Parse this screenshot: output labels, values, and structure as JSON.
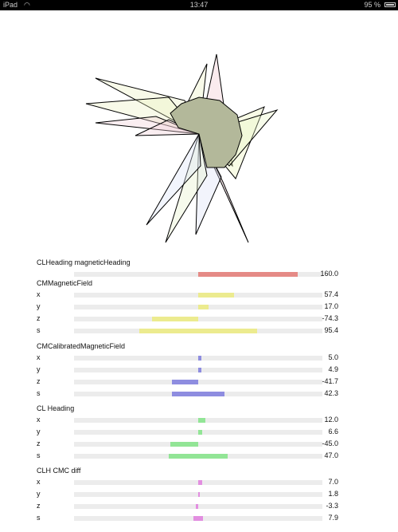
{
  "status_bar": {
    "device": "iPad",
    "time": "13:47",
    "battery": "95 %"
  },
  "colors": {
    "heading": "#e58a86",
    "magnetic": "#eceb8f",
    "calibrated": "#8e8de0",
    "cl_heading": "#92e596",
    "diff": "#e28ee0"
  },
  "scale_max": 200,
  "sections": [
    {
      "title": "CLHeading magneticHeading",
      "color_key": "heading",
      "rows": [
        {
          "label": "",
          "value": 160.0,
          "display": "160.0"
        }
      ]
    },
    {
      "title": "CMMagneticField",
      "color_key": "magnetic",
      "rows": [
        {
          "label": "x",
          "value": 57.4,
          "display": "57.4"
        },
        {
          "label": "y",
          "value": 17.0,
          "display": "17.0"
        },
        {
          "label": "z",
          "value": -74.3,
          "display": "-74.3"
        },
        {
          "label": "s",
          "value": 95.4,
          "display": "95.4",
          "symmetric": true
        }
      ]
    },
    {
      "title": "CMCalibratedMagneticField",
      "color_key": "calibrated",
      "rows": [
        {
          "label": "x",
          "value": 5.0,
          "display": "5.0"
        },
        {
          "label": "y",
          "value": 4.9,
          "display": "4.9"
        },
        {
          "label": "z",
          "value": -41.7,
          "display": "-41.7"
        },
        {
          "label": "s",
          "value": 42.3,
          "display": "42.3",
          "symmetric": true
        }
      ]
    },
    {
      "title": "CL Heading",
      "color_key": "cl_heading",
      "rows": [
        {
          "label": "x",
          "value": 12.0,
          "display": "12.0"
        },
        {
          "label": "y",
          "value": 6.6,
          "display": "6.6"
        },
        {
          "label": "z",
          "value": -45.0,
          "display": "-45.0"
        },
        {
          "label": "s",
          "value": 47.0,
          "display": "47.0",
          "symmetric": true
        }
      ]
    },
    {
      "title": "CLH  CMC diff",
      "color_key": "diff",
      "rows": [
        {
          "label": "x",
          "value": 7.0,
          "display": "7.0"
        },
        {
          "label": "y",
          "value": 1.8,
          "display": "1.8"
        },
        {
          "label": "z",
          "value": -3.3,
          "display": "-3.3"
        },
        {
          "label": "s",
          "value": 7.9,
          "display": "7.9",
          "symmetric": true
        }
      ]
    }
  ]
}
